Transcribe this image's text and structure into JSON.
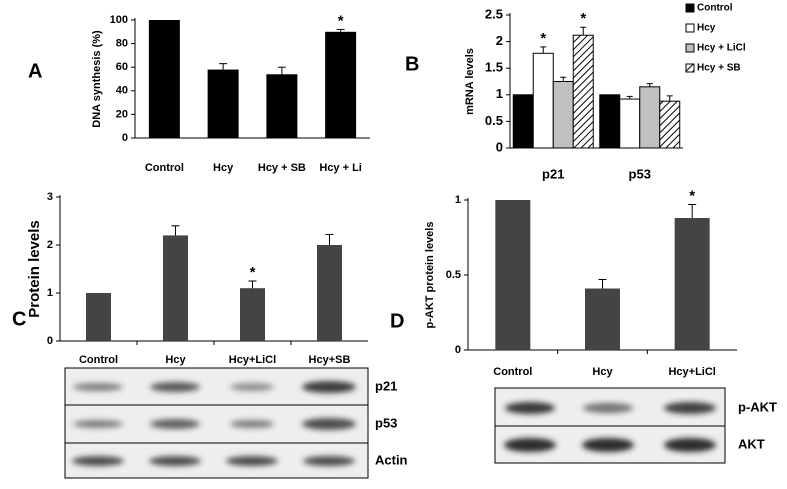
{
  "chart_data": [
    {
      "type": "bar",
      "panel": "A",
      "ylabel": "DNA synthesis (%)",
      "color": "#000000",
      "categories": [
        "Control",
        "Hcy",
        "Hcy + SB",
        "Hcy + Li"
      ],
      "values": [
        100,
        58,
        54,
        90
      ],
      "errors": [
        0,
        5,
        6,
        2
      ],
      "significance": [
        null,
        null,
        null,
        "*"
      ],
      "ylim": [
        0,
        100
      ],
      "yticks": [
        0,
        20,
        40,
        60,
        80,
        100
      ]
    },
    {
      "type": "bar",
      "panel": "B",
      "ylabel": "mRNA levels",
      "categories": [
        "p21",
        "p53"
      ],
      "series": [
        {
          "name": "Control",
          "color": "#000000",
          "values": [
            1,
            1
          ],
          "errors": [
            0,
            0
          ],
          "significance": [
            null,
            null
          ]
        },
        {
          "name": "Hcy",
          "color": "#ffffff",
          "values": [
            1.78,
            0.92
          ],
          "errors": [
            0.12,
            0.05
          ],
          "significance": [
            "*",
            null
          ]
        },
        {
          "name": "Hcy + LiCl",
          "color": "#c0c0c0",
          "values": [
            1.25,
            1.15
          ],
          "errors": [
            0.08,
            0.06
          ],
          "significance": [
            null,
            null
          ]
        },
        {
          "name": "Hcy + SB",
          "color": "#ffffff",
          "pattern": "hatch",
          "values": [
            2.12,
            0.88
          ],
          "errors": [
            0.15,
            0.1
          ],
          "significance": [
            "*",
            null
          ]
        }
      ],
      "legend": "upper right",
      "ylim": [
        0,
        2.5
      ],
      "yticks": [
        0,
        0.5,
        1,
        1.5,
        2,
        2.5
      ]
    },
    {
      "type": "bar",
      "panel": "C",
      "ylabel": "Protein levels",
      "color": "#444444",
      "categories": [
        "Control",
        "Hcy",
        "Hcy+LiCl",
        "Hcy+SB"
      ],
      "values": [
        1,
        2.2,
        1.1,
        2.0
      ],
      "errors": [
        0,
        0.2,
        0.15,
        0.22
      ],
      "significance": [
        null,
        null,
        "*",
        null
      ],
      "ylim": [
        0,
        3
      ],
      "yticks": [
        0,
        1,
        2,
        3
      ],
      "blot_labels": [
        "p21",
        "p53",
        "Actin"
      ]
    },
    {
      "type": "bar",
      "panel": "D",
      "ylabel": "p-AKT protein levels",
      "color": "#444444",
      "categories": [
        "Control",
        "Hcy",
        "Hcy+LiCl"
      ],
      "values": [
        1,
        0.41,
        0.88
      ],
      "errors": [
        0,
        0.06,
        0.09
      ],
      "significance": [
        null,
        null,
        "*"
      ],
      "ylim": [
        0,
        1
      ],
      "yticks": [
        0,
        0.5,
        1
      ],
      "blot_labels": [
        "p-AKT",
        "AKT"
      ]
    }
  ]
}
